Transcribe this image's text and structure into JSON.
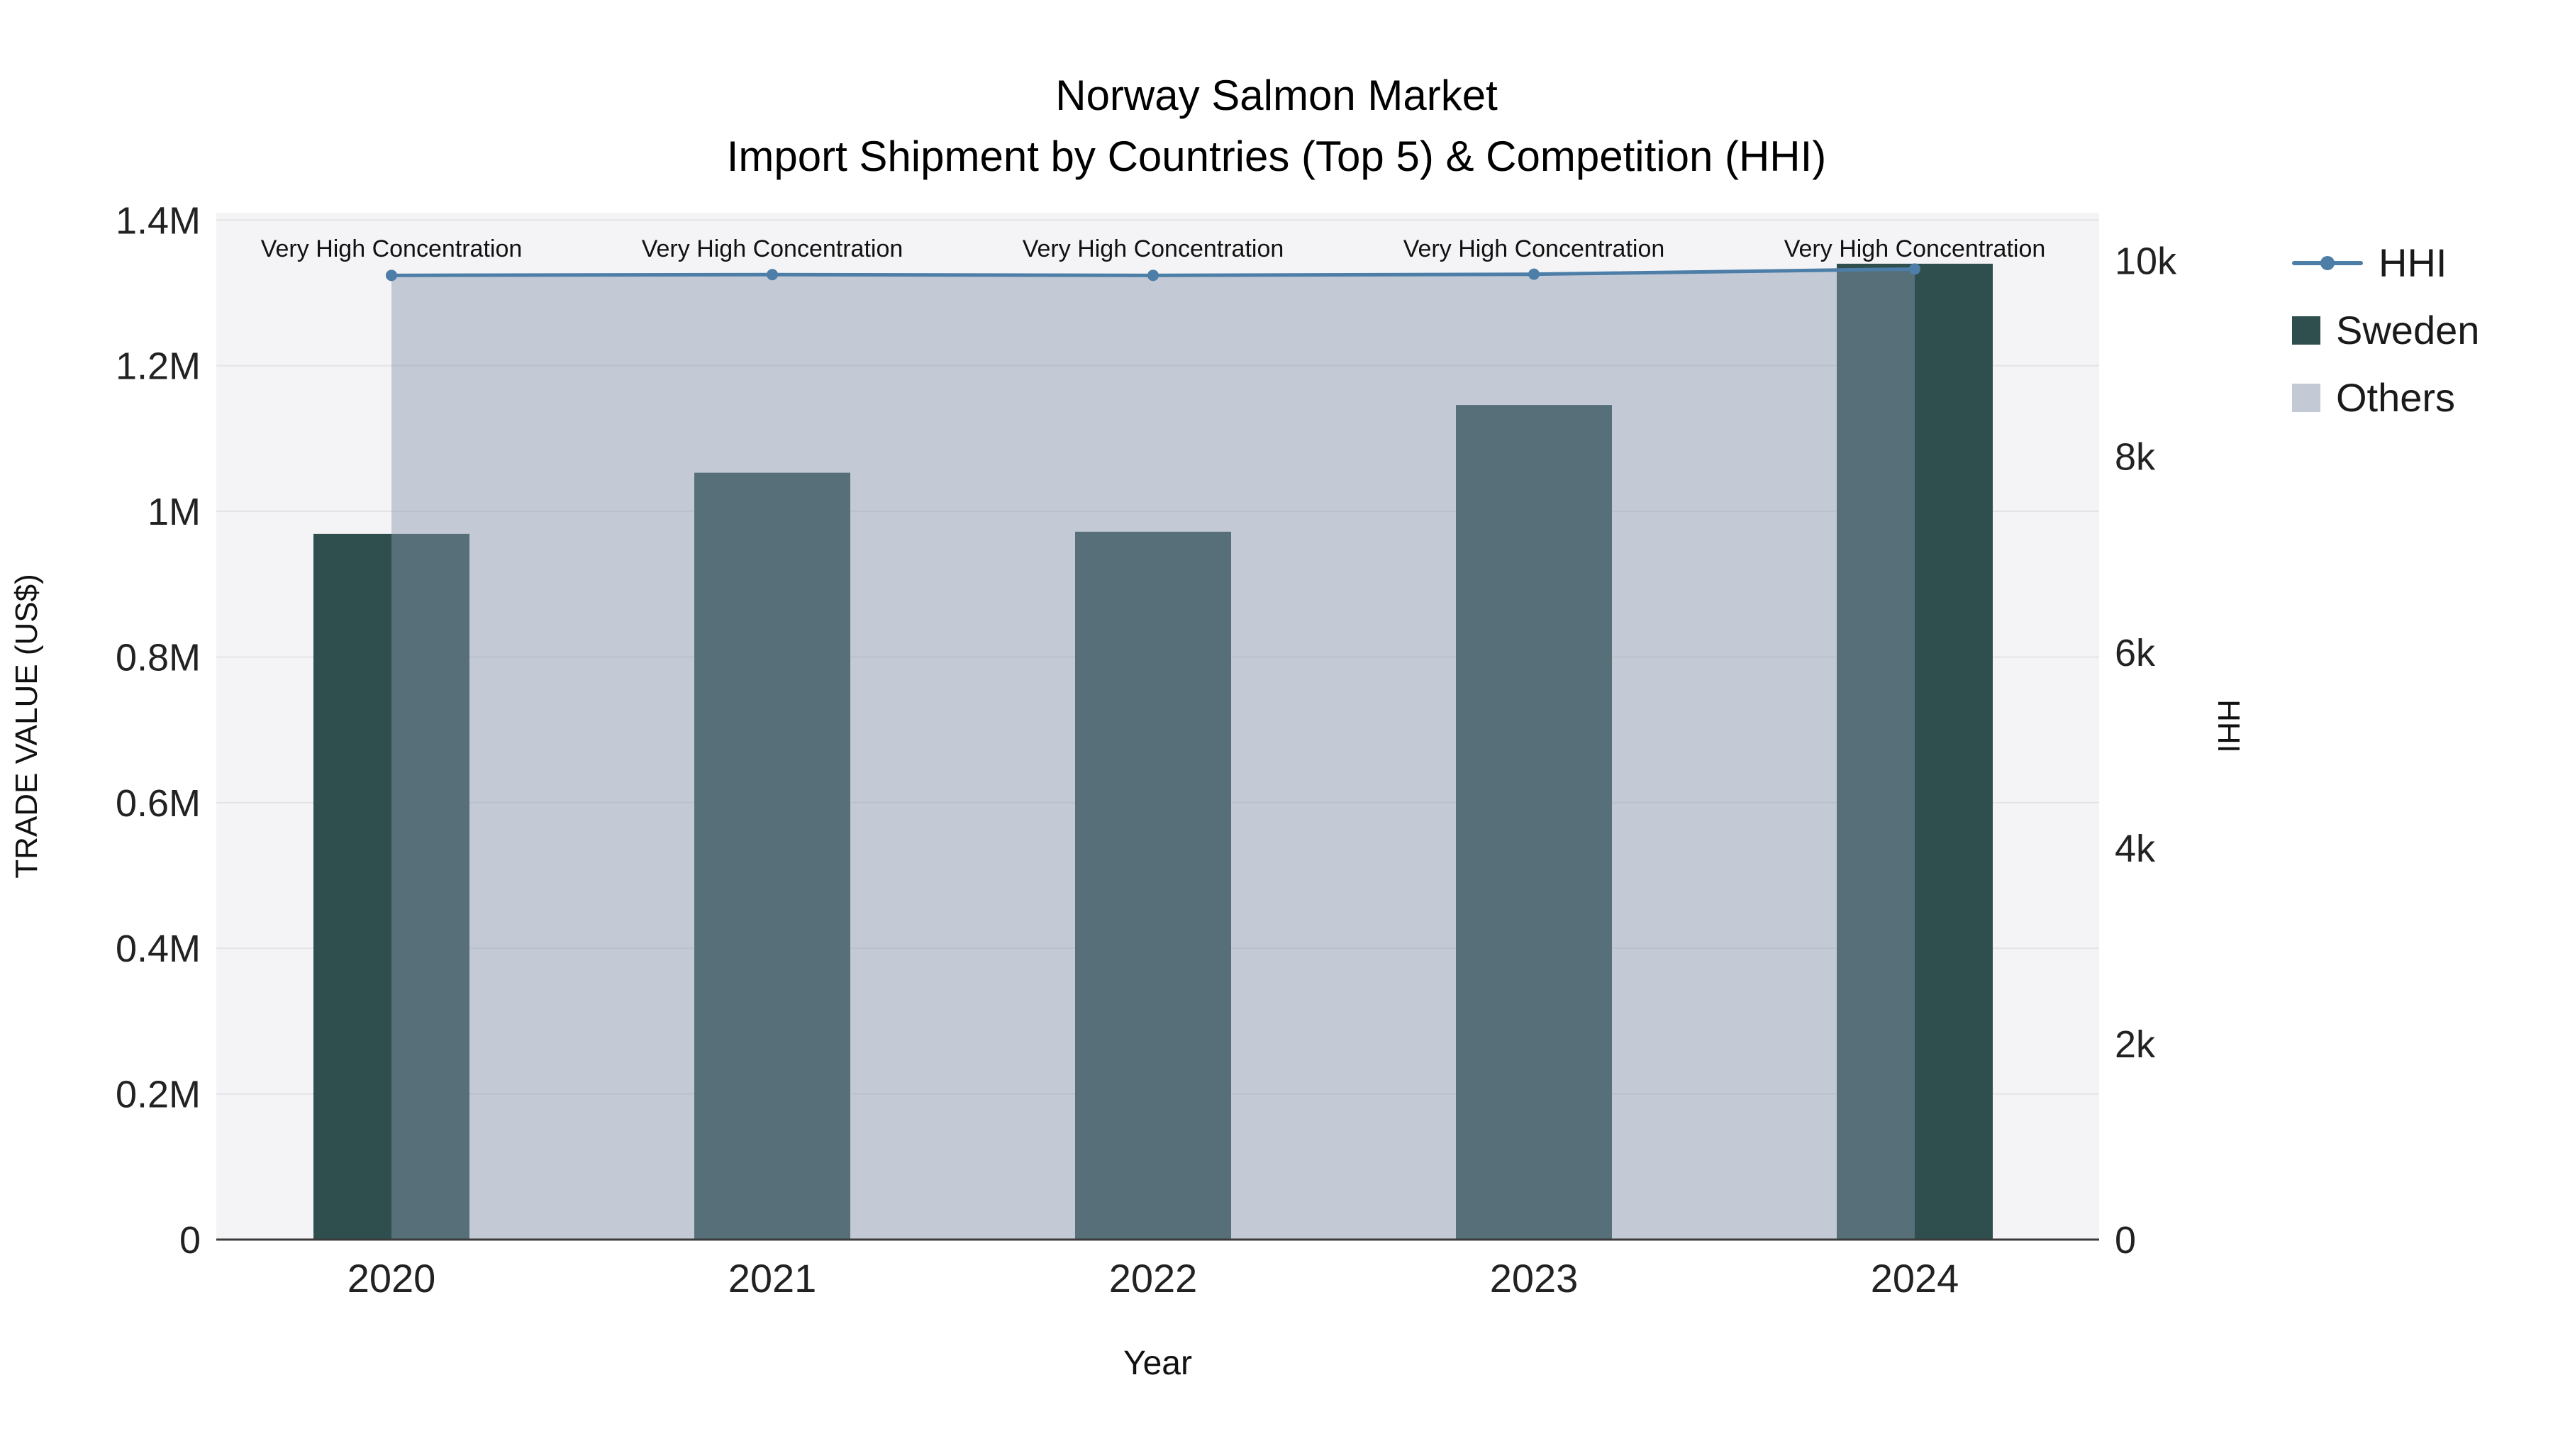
{
  "chart_data": {
    "type": "bar+line",
    "title": "Norway Salmon Market",
    "subtitle": "Import Shipment by Countries (Top 5) & Competition (HHI)",
    "xlabel": "Year",
    "ylabel_left": "TRADE VALUE (US$)",
    "ylabel_right": "HHI",
    "categories": [
      "2020",
      "2021",
      "2022",
      "2023",
      "2024"
    ],
    "series": [
      {
        "name": "Sweden",
        "type": "bar",
        "axis": "left",
        "color": "#2F4F4F",
        "values": [
          969000,
          1053000,
          972000,
          1146000,
          1340000
        ]
      },
      {
        "name": "Others",
        "type": "area",
        "axis": "right",
        "color": "rgba(135,150,173,0.45)",
        "values": [
          9850,
          9858,
          9850,
          9862,
          9915
        ]
      },
      {
        "name": "HHI",
        "type": "line",
        "axis": "right",
        "color": "#4d7ea8",
        "values": [
          9850,
          9858,
          9850,
          9862,
          9915
        ]
      }
    ],
    "annotations": [
      "Very High Concentration",
      "Very High Concentration",
      "Very High Concentration",
      "Very High Concentration",
      "Very High Concentration"
    ],
    "left_axis": {
      "range": [
        0,
        1410000
      ],
      "ticks": [
        0,
        200000,
        400000,
        600000,
        800000,
        1000000,
        1200000,
        1400000
      ],
      "tick_labels": [
        "0",
        "0.2M",
        "0.4M",
        "0.6M",
        "0.8M",
        "1M",
        "1.2M",
        "1.4M"
      ]
    },
    "right_axis": {
      "range": [
        0,
        10490
      ],
      "ticks": [
        0,
        2000,
        4000,
        6000,
        8000,
        10000
      ],
      "tick_labels": [
        "0",
        "2k",
        "4k",
        "6k",
        "8k",
        "10k"
      ]
    },
    "legend": [
      {
        "label": "HHI",
        "type": "line",
        "color": "#4d7ea8"
      },
      {
        "label": "Sweden",
        "type": "square",
        "color": "#2F4F4F"
      },
      {
        "label": "Others",
        "type": "square",
        "color": "#c3cad6"
      }
    ],
    "style": {
      "plot_background": "#f4f4f6",
      "gridline_color": "#e2e3e6",
      "axis_line_color": "#3b3b3b"
    }
  }
}
